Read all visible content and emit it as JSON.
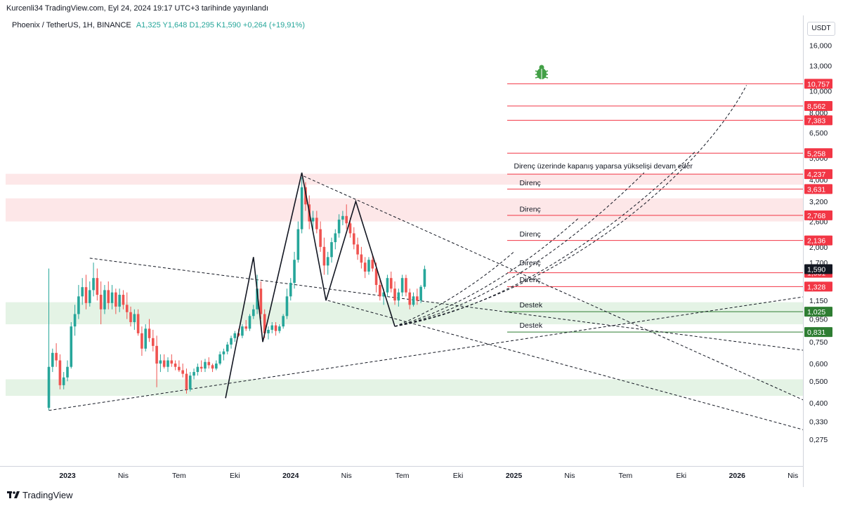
{
  "header": {
    "published_text": "Kurcenli34 TradingView.com, Eyl 24, 2024 19:17 UTC+3 tarihinde yayınlandı"
  },
  "symbol_bar": {
    "symbol": "Phoenix / TetherUS, 1H, BINANCE",
    "ohlc": "A1,325  Y1,648  D1,295  K1,590  +0,264 (+19,91%)"
  },
  "price_axis": {
    "unit": "USDT",
    "ticks": [
      {
        "label": "16,000",
        "value": 16.0
      },
      {
        "label": "13,000",
        "value": 13.0
      },
      {
        "label": "10,000",
        "value": 10.0
      },
      {
        "label": "8,000",
        "value": 8.0
      },
      {
        "label": "6,500",
        "value": 6.5
      },
      {
        "label": "5,000",
        "value": 5.0
      },
      {
        "label": "4,000",
        "value": 4.0
      },
      {
        "label": "3,200",
        "value": 3.2
      },
      {
        "label": "2,600",
        "value": 2.6
      },
      {
        "label": "2,000",
        "value": 2.0
      },
      {
        "label": "1,700",
        "value": 1.7
      },
      {
        "label": "1,150",
        "value": 1.15
      },
      {
        "label": "0,950",
        "value": 0.95
      },
      {
        "label": "0,750",
        "value": 0.75
      },
      {
        "label": "0,600",
        "value": 0.6
      },
      {
        "label": "0,500",
        "value": 0.5
      },
      {
        "label": "0,400",
        "value": 0.4
      },
      {
        "label": "0,330",
        "value": 0.33
      },
      {
        "label": "0,275",
        "value": 0.275
      }
    ]
  },
  "time_axis": {
    "ticks": [
      {
        "label": "2023",
        "bold": true,
        "t": 0
      },
      {
        "label": "Nis",
        "bold": false,
        "t": 3
      },
      {
        "label": "Tem",
        "bold": false,
        "t": 6
      },
      {
        "label": "Eki",
        "bold": false,
        "t": 9
      },
      {
        "label": "2024",
        "bold": true,
        "t": 12
      },
      {
        "label": "Nis",
        "bold": false,
        "t": 15
      },
      {
        "label": "Tem",
        "bold": false,
        "t": 18
      },
      {
        "label": "Eki",
        "bold": false,
        "t": 21
      },
      {
        "label": "2025",
        "bold": true,
        "t": 24
      },
      {
        "label": "Nis",
        "bold": false,
        "t": 27
      },
      {
        "label": "Tem",
        "bold": false,
        "t": 30
      },
      {
        "label": "Eki",
        "bold": false,
        "t": 33
      },
      {
        "label": "2026",
        "bold": true,
        "t": 36
      },
      {
        "label": "Nis",
        "bold": false,
        "t": 39
      }
    ]
  },
  "chart_data": {
    "type": "candlestick",
    "scale": "log",
    "title": "Phoenix / TetherUS, 1H, BINANCE",
    "xlabel": "",
    "ylabel": "USDT",
    "x_axis_unit": "months from Jan 2023",
    "ylim": [
      0.25,
      16.5
    ],
    "last_price": 1.59,
    "candles": [
      {
        "t": -1.0,
        "o": 0.38,
        "h": 1.6,
        "l": 0.37,
        "c": 0.58
      },
      {
        "t": -0.8,
        "o": 0.58,
        "h": 0.7,
        "l": 0.55,
        "c": 0.67
      },
      {
        "t": -0.6,
        "o": 0.67,
        "h": 0.74,
        "l": 0.58,
        "c": 0.62
      },
      {
        "t": -0.4,
        "o": 0.62,
        "h": 0.66,
        "l": 0.46,
        "c": 0.48
      },
      {
        "t": -0.2,
        "o": 0.48,
        "h": 0.55,
        "l": 0.46,
        "c": 0.52
      },
      {
        "t": 0.0,
        "o": 0.52,
        "h": 0.62,
        "l": 0.5,
        "c": 0.58
      },
      {
        "t": 0.2,
        "o": 0.58,
        "h": 0.92,
        "l": 0.57,
        "c": 0.88
      },
      {
        "t": 0.4,
        "o": 0.88,
        "h": 1.1,
        "l": 0.8,
        "c": 1.0
      },
      {
        "t": 0.6,
        "o": 1.0,
        "h": 1.35,
        "l": 0.95,
        "c": 1.2
      },
      {
        "t": 0.8,
        "o": 1.2,
        "h": 1.45,
        "l": 1.1,
        "c": 1.32
      },
      {
        "t": 1.0,
        "o": 1.32,
        "h": 1.5,
        "l": 1.05,
        "c": 1.12
      },
      {
        "t": 1.2,
        "o": 1.12,
        "h": 1.4,
        "l": 1.08,
        "c": 1.28
      },
      {
        "t": 1.4,
        "o": 1.28,
        "h": 1.7,
        "l": 1.2,
        "c": 1.45
      },
      {
        "t": 1.6,
        "o": 1.45,
        "h": 1.6,
        "l": 1.15,
        "c": 1.22
      },
      {
        "t": 1.8,
        "o": 1.22,
        "h": 1.4,
        "l": 0.9,
        "c": 1.05
      },
      {
        "t": 2.0,
        "o": 1.05,
        "h": 1.35,
        "l": 1.0,
        "c": 1.28
      },
      {
        "t": 2.2,
        "o": 1.28,
        "h": 1.4,
        "l": 1.05,
        "c": 1.12
      },
      {
        "t": 2.4,
        "o": 1.12,
        "h": 1.35,
        "l": 1.05,
        "c": 1.25
      },
      {
        "t": 2.6,
        "o": 1.25,
        "h": 1.3,
        "l": 1.0,
        "c": 1.08
      },
      {
        "t": 2.8,
        "o": 1.08,
        "h": 1.3,
        "l": 1.02,
        "c": 1.22
      },
      {
        "t": 3.0,
        "o": 1.22,
        "h": 1.28,
        "l": 1.05,
        "c": 1.1
      },
      {
        "t": 3.2,
        "o": 1.1,
        "h": 1.25,
        "l": 0.95,
        "c": 1.02
      },
      {
        "t": 3.4,
        "o": 1.02,
        "h": 1.08,
        "l": 0.88,
        "c": 0.92
      },
      {
        "t": 3.6,
        "o": 0.92,
        "h": 1.05,
        "l": 0.85,
        "c": 1.0
      },
      {
        "t": 3.8,
        "o": 1.0,
        "h": 1.05,
        "l": 0.8,
        "c": 0.82
      },
      {
        "t": 4.0,
        "o": 0.82,
        "h": 0.88,
        "l": 0.65,
        "c": 0.7
      },
      {
        "t": 4.2,
        "o": 0.7,
        "h": 0.9,
        "l": 0.68,
        "c": 0.86
      },
      {
        "t": 4.4,
        "o": 0.86,
        "h": 0.95,
        "l": 0.75,
        "c": 0.78
      },
      {
        "t": 4.6,
        "o": 0.78,
        "h": 0.85,
        "l": 0.68,
        "c": 0.72
      },
      {
        "t": 4.8,
        "o": 0.72,
        "h": 0.8,
        "l": 0.47,
        "c": 0.6
      },
      {
        "t": 5.0,
        "o": 0.6,
        "h": 0.66,
        "l": 0.55,
        "c": 0.62
      },
      {
        "t": 5.2,
        "o": 0.62,
        "h": 0.66,
        "l": 0.57,
        "c": 0.58
      },
      {
        "t": 5.4,
        "o": 0.58,
        "h": 0.64,
        "l": 0.55,
        "c": 0.62
      },
      {
        "t": 5.6,
        "o": 0.62,
        "h": 0.66,
        "l": 0.58,
        "c": 0.6
      },
      {
        "t": 5.8,
        "o": 0.6,
        "h": 0.62,
        "l": 0.56,
        "c": 0.58
      },
      {
        "t": 6.0,
        "o": 0.58,
        "h": 0.62,
        "l": 0.55,
        "c": 0.56
      },
      {
        "t": 6.2,
        "o": 0.56,
        "h": 0.6,
        "l": 0.52,
        "c": 0.54
      },
      {
        "t": 6.4,
        "o": 0.54,
        "h": 0.57,
        "l": 0.44,
        "c": 0.46
      },
      {
        "t": 6.6,
        "o": 0.46,
        "h": 0.55,
        "l": 0.45,
        "c": 0.53
      },
      {
        "t": 6.8,
        "o": 0.53,
        "h": 0.57,
        "l": 0.51,
        "c": 0.55
      },
      {
        "t": 7.0,
        "o": 0.55,
        "h": 0.6,
        "l": 0.53,
        "c": 0.58
      },
      {
        "t": 7.2,
        "o": 0.58,
        "h": 0.62,
        "l": 0.55,
        "c": 0.57
      },
      {
        "t": 7.4,
        "o": 0.57,
        "h": 0.63,
        "l": 0.55,
        "c": 0.61
      },
      {
        "t": 7.6,
        "o": 0.61,
        "h": 0.64,
        "l": 0.57,
        "c": 0.59
      },
      {
        "t": 7.8,
        "o": 0.59,
        "h": 0.6,
        "l": 0.55,
        "c": 0.57
      },
      {
        "t": 8.0,
        "o": 0.57,
        "h": 0.62,
        "l": 0.56,
        "c": 0.6
      },
      {
        "t": 8.2,
        "o": 0.6,
        "h": 0.68,
        "l": 0.59,
        "c": 0.66
      },
      {
        "t": 8.4,
        "o": 0.66,
        "h": 0.7,
        "l": 0.62,
        "c": 0.68
      },
      {
        "t": 8.6,
        "o": 0.68,
        "h": 0.75,
        "l": 0.66,
        "c": 0.73
      },
      {
        "t": 8.8,
        "o": 0.73,
        "h": 0.8,
        "l": 0.7,
        "c": 0.78
      },
      {
        "t": 9.0,
        "o": 0.78,
        "h": 0.84,
        "l": 0.75,
        "c": 0.82
      },
      {
        "t": 9.2,
        "o": 0.82,
        "h": 0.86,
        "l": 0.79,
        "c": 0.8
      },
      {
        "t": 9.4,
        "o": 0.8,
        "h": 0.9,
        "l": 0.78,
        "c": 0.88
      },
      {
        "t": 9.6,
        "o": 0.88,
        "h": 0.94,
        "l": 0.84,
        "c": 0.86
      },
      {
        "t": 9.8,
        "o": 0.86,
        "h": 1.0,
        "l": 0.84,
        "c": 0.98
      },
      {
        "t": 10.0,
        "o": 0.98,
        "h": 1.1,
        "l": 0.95,
        "c": 1.05
      },
      {
        "t": 10.2,
        "o": 1.05,
        "h": 1.5,
        "l": 1.0,
        "c": 1.3
      },
      {
        "t": 10.4,
        "o": 1.3,
        "h": 1.4,
        "l": 0.95,
        "c": 1.0
      },
      {
        "t": 10.6,
        "o": 1.0,
        "h": 1.05,
        "l": 0.78,
        "c": 0.82
      },
      {
        "t": 10.8,
        "o": 0.82,
        "h": 0.88,
        "l": 0.77,
        "c": 0.85
      },
      {
        "t": 11.0,
        "o": 0.85,
        "h": 0.92,
        "l": 0.82,
        "c": 0.89
      },
      {
        "t": 11.2,
        "o": 0.89,
        "h": 0.92,
        "l": 0.8,
        "c": 0.84
      },
      {
        "t": 11.4,
        "o": 0.84,
        "h": 0.9,
        "l": 0.82,
        "c": 0.88
      },
      {
        "t": 11.6,
        "o": 0.88,
        "h": 1.0,
        "l": 0.86,
        "c": 0.98
      },
      {
        "t": 11.8,
        "o": 0.98,
        "h": 1.3,
        "l": 0.95,
        "c": 1.2
      },
      {
        "t": 12.0,
        "o": 1.2,
        "h": 1.45,
        "l": 1.15,
        "c": 1.38
      },
      {
        "t": 12.2,
        "o": 1.38,
        "h": 1.9,
        "l": 1.3,
        "c": 1.75
      },
      {
        "t": 12.4,
        "o": 1.75,
        "h": 2.6,
        "l": 1.7,
        "c": 2.4
      },
      {
        "t": 12.6,
        "o": 2.4,
        "h": 4.1,
        "l": 2.3,
        "c": 3.7
      },
      {
        "t": 12.8,
        "o": 3.7,
        "h": 3.9,
        "l": 2.9,
        "c": 3.1
      },
      {
        "t": 13.0,
        "o": 3.1,
        "h": 3.4,
        "l": 2.4,
        "c": 2.6
      },
      {
        "t": 13.2,
        "o": 2.6,
        "h": 2.9,
        "l": 2.3,
        "c": 2.7
      },
      {
        "t": 13.4,
        "o": 2.7,
        "h": 2.9,
        "l": 2.3,
        "c": 2.4
      },
      {
        "t": 13.6,
        "o": 2.4,
        "h": 2.6,
        "l": 1.9,
        "c": 2.0
      },
      {
        "t": 13.8,
        "o": 2.0,
        "h": 2.2,
        "l": 1.5,
        "c": 1.65
      },
      {
        "t": 14.0,
        "o": 1.65,
        "h": 1.9,
        "l": 1.5,
        "c": 1.8
      },
      {
        "t": 14.2,
        "o": 1.8,
        "h": 2.2,
        "l": 1.7,
        "c": 2.1
      },
      {
        "t": 14.4,
        "o": 2.1,
        "h": 2.4,
        "l": 1.95,
        "c": 2.3
      },
      {
        "t": 14.6,
        "o": 2.3,
        "h": 2.8,
        "l": 2.2,
        "c": 2.65
      },
      {
        "t": 14.8,
        "o": 2.65,
        "h": 2.9,
        "l": 2.5,
        "c": 2.75
      },
      {
        "t": 15.0,
        "o": 2.75,
        "h": 3.1,
        "l": 2.4,
        "c": 2.55
      },
      {
        "t": 15.2,
        "o": 2.55,
        "h": 2.7,
        "l": 2.2,
        "c": 2.3
      },
      {
        "t": 15.4,
        "o": 2.3,
        "h": 2.45,
        "l": 1.95,
        "c": 2.05
      },
      {
        "t": 15.6,
        "o": 2.05,
        "h": 2.2,
        "l": 1.75,
        "c": 1.85
      },
      {
        "t": 15.8,
        "o": 1.85,
        "h": 2.0,
        "l": 1.6,
        "c": 1.7
      },
      {
        "t": 16.0,
        "o": 1.7,
        "h": 1.8,
        "l": 1.45,
        "c": 1.55
      },
      {
        "t": 16.2,
        "o": 1.55,
        "h": 1.8,
        "l": 1.5,
        "c": 1.75
      },
      {
        "t": 16.4,
        "o": 1.75,
        "h": 1.85,
        "l": 1.55,
        "c": 1.6
      },
      {
        "t": 16.6,
        "o": 1.6,
        "h": 1.7,
        "l": 1.25,
        "c": 1.35
      },
      {
        "t": 16.8,
        "o": 1.35,
        "h": 1.45,
        "l": 1.15,
        "c": 1.2
      },
      {
        "t": 17.0,
        "o": 1.2,
        "h": 1.3,
        "l": 1.1,
        "c": 1.25
      },
      {
        "t": 17.2,
        "o": 1.25,
        "h": 1.5,
        "l": 1.2,
        "c": 1.45
      },
      {
        "t": 17.4,
        "o": 1.45,
        "h": 1.55,
        "l": 1.25,
        "c": 1.3
      },
      {
        "t": 17.6,
        "o": 1.3,
        "h": 1.4,
        "l": 1.1,
        "c": 1.15
      },
      {
        "t": 17.8,
        "o": 1.15,
        "h": 1.3,
        "l": 1.08,
        "c": 1.25
      },
      {
        "t": 18.0,
        "o": 1.25,
        "h": 1.5,
        "l": 1.2,
        "c": 1.45
      },
      {
        "t": 18.2,
        "o": 1.45,
        "h": 1.5,
        "l": 1.2,
        "c": 1.25
      },
      {
        "t": 18.4,
        "o": 1.25,
        "h": 1.3,
        "l": 1.05,
        "c": 1.1
      },
      {
        "t": 18.6,
        "o": 1.1,
        "h": 1.25,
        "l": 1.08,
        "c": 1.2
      },
      {
        "t": 18.8,
        "o": 1.2,
        "h": 1.3,
        "l": 1.1,
        "c": 1.15
      },
      {
        "t": 19.0,
        "o": 1.15,
        "h": 1.35,
        "l": 1.12,
        "c": 1.325
      },
      {
        "t": 19.2,
        "o": 1.325,
        "h": 1.648,
        "l": 1.295,
        "c": 1.59
      }
    ],
    "horizontal_levels": [
      {
        "value": 10.757,
        "label": "10,757",
        "color": "#f23645"
      },
      {
        "value": 8.562,
        "label": "8,562",
        "color": "#f23645"
      },
      {
        "value": 7.383,
        "label": "7,383",
        "color": "#f23645"
      },
      {
        "value": 5.258,
        "label": "5,258",
        "color": "#f23645"
      },
      {
        "value": 4.237,
        "label": "4,237",
        "color": "#f23645"
      },
      {
        "value": 3.631,
        "label": "3,631",
        "color": "#f23645"
      },
      {
        "value": 2.768,
        "label": "2,768",
        "color": "#f23645"
      },
      {
        "value": 2.136,
        "label": "2,136",
        "color": "#f23645"
      },
      {
        "value": 1.531,
        "label": "1,531",
        "color": "#f23645"
      },
      {
        "value": 1.328,
        "label": "1,328",
        "color": "#f23645"
      },
      {
        "value": 1.025,
        "label": "1,025",
        "color": "#2e7d32"
      },
      {
        "value": 0.831,
        "label": "0,831",
        "color": "#2e7d32"
      }
    ],
    "zones": [
      {
        "from": 3.8,
        "to": 4.25,
        "color": "rgba(242,54,69,0.12)"
      },
      {
        "from": 2.6,
        "to": 3.3,
        "color": "rgba(242,54,69,0.12)"
      },
      {
        "from": 0.9,
        "to": 1.13,
        "color": "rgba(76,175,80,0.15)"
      },
      {
        "from": 0.43,
        "to": 0.51,
        "color": "rgba(76,175,80,0.15)"
      }
    ],
    "annotations": [
      {
        "text": "Direnç üzerinde kapanış yaparsa yükselişi devam eder",
        "t": 24.0,
        "value": 4.4
      },
      {
        "text": "Direnç",
        "t": 24.3,
        "value": 3.7
      },
      {
        "text": "Direnç",
        "t": 24.3,
        "value": 2.82
      },
      {
        "text": "Direnç",
        "t": 24.3,
        "value": 2.18
      },
      {
        "text": "Direnç",
        "t": 24.3,
        "value": 1.62
      },
      {
        "text": "Direnç",
        "t": 24.3,
        "value": 1.36
      },
      {
        "text": "Destek",
        "t": 24.3,
        "value": 1.05
      },
      {
        "text": "Destek",
        "t": 24.3,
        "value": 0.85
      }
    ],
    "pattern_path": [
      {
        "t": 8.5,
        "value": 0.42
      },
      {
        "t": 10.0,
        "value": 1.8
      },
      {
        "t": 10.5,
        "value": 0.75
      },
      {
        "t": 12.6,
        "value": 4.3
      },
      {
        "t": 13.9,
        "value": 1.15
      },
      {
        "t": 15.5,
        "value": 3.2
      },
      {
        "t": 17.6,
        "value": 0.88
      }
    ],
    "dashed_lines": [
      {
        "from": {
          "t": -1.0,
          "value": 0.37
        },
        "to": {
          "t": 42.5,
          "value": 1.3
        }
      },
      {
        "from": {
          "t": 1.2,
          "value": 1.78
        },
        "to": {
          "t": 42.5,
          "value": 0.64
        }
      },
      {
        "from": {
          "t": 12.7,
          "value": 4.15
        },
        "to": {
          "t": 42.5,
          "value": 0.32
        }
      },
      {
        "from": {
          "t": 14.0,
          "value": 1.15
        },
        "to": {
          "t": 42.5,
          "value": 0.26
        }
      }
    ],
    "fan_curves": [
      {
        "points": [
          {
            "t": 17.6,
            "value": 0.88
          },
          {
            "t": 21.0,
            "value": 1.15
          },
          {
            "t": 24.0,
            "value": 1.9
          }
        ]
      },
      {
        "points": [
          {
            "t": 17.6,
            "value": 0.88
          },
          {
            "t": 22.5,
            "value": 1.15
          },
          {
            "t": 27.5,
            "value": 2.7
          }
        ]
      },
      {
        "points": [
          {
            "t": 17.6,
            "value": 0.88
          },
          {
            "t": 24.0,
            "value": 1.15
          },
          {
            "t": 31.0,
            "value": 4.3
          }
        ]
      },
      {
        "points": [
          {
            "t": 17.6,
            "value": 0.88
          },
          {
            "t": 25.5,
            "value": 1.15
          },
          {
            "t": 33.8,
            "value": 5.4
          }
        ]
      },
      {
        "points": [
          {
            "t": 17.6,
            "value": 0.88
          },
          {
            "t": 27.5,
            "value": 1.3
          },
          {
            "t": 34.5,
            "value": 5.0
          },
          {
            "t": 36.5,
            "value": 10.6
          }
        ]
      }
    ],
    "colors": {
      "up": "#26a69a",
      "down": "#ef5350",
      "resistance": "#f23645",
      "support": "#2e7d32",
      "last_price_bg": "#131722"
    }
  },
  "footer": {
    "brand": "TradingView"
  }
}
